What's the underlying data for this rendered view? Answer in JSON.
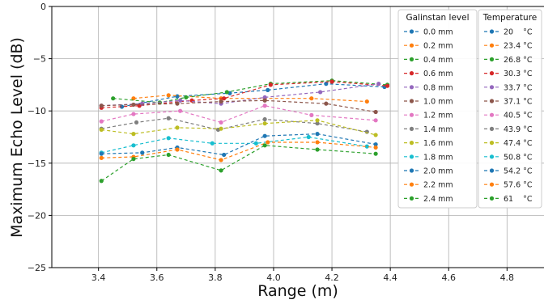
{
  "chart_data": {
    "type": "line",
    "title": "",
    "xlabel": "Range (m)",
    "ylabel": "Maximum Echo Level (dB)",
    "xlim": [
      3.24,
      4.96
    ],
    "ylim": [
      -25,
      0
    ],
    "xticks": [
      "3.4",
      "3.6",
      "3.8",
      "4.0",
      "4.2",
      "4.4",
      "4.6",
      "4.8"
    ],
    "yticks": [
      "0",
      "−5",
      "−10",
      "−15",
      "−20",
      "−25"
    ],
    "grid": true,
    "legend": {
      "placement": "top-right",
      "columns": [
        {
          "title": "Galinstan level",
          "entries": [
            "0.0 mm",
            "0.2 mm",
            "0.4 mm",
            "0.6 mm",
            "0.8 mm",
            "1.0 mm",
            "1.2 mm",
            "1.4 mm",
            "1.6 mm",
            "1.8 mm",
            "2.0 mm",
            "2.2 mm",
            "2.4 mm"
          ]
        },
        {
          "title": "Temperature",
          "entries": [
            "20    °C",
            "23.4 °C",
            "26.8 °C",
            "30.3 °C",
            "33.7 °C",
            "37.1 °C",
            "40.5 °C",
            "43.9 °C",
            "47.4 °C",
            "50.8 °C",
            "54.2 °C",
            "57.6 °C",
            "61    °C"
          ]
        }
      ]
    },
    "series": [
      {
        "color": "#1f77b4",
        "x": [
          3.48,
          3.67,
          3.85,
          3.98,
          4.18,
          4.38
        ],
        "y": [
          -9.6,
          -8.6,
          -8.3,
          -8.0,
          -7.4,
          -7.7
        ]
      },
      {
        "color": "#ff7f0e",
        "x": [
          3.52,
          3.64,
          3.82,
          3.97,
          4.13,
          4.32
        ],
        "y": [
          -8.8,
          -8.5,
          -8.8,
          -8.8,
          -8.8,
          -9.1
        ]
      },
      {
        "color": "#2ca02c",
        "x": [
          3.45,
          3.61,
          3.7,
          3.84,
          3.99,
          4.2,
          4.39
        ],
        "y": [
          -8.8,
          -9.2,
          -8.7,
          -8.2,
          -7.4,
          -7.1,
          -7.5
        ]
      },
      {
        "color": "#d62728",
        "x": [
          3.41,
          3.54,
          3.72,
          3.83,
          3.99,
          4.2,
          4.39
        ],
        "y": [
          -9.7,
          -9.5,
          -9.0,
          -8.8,
          -7.5,
          -7.2,
          -7.6
        ]
      },
      {
        "color": "#9467bd",
        "x": [
          3.41,
          3.55,
          3.68,
          3.82,
          3.97,
          4.16,
          4.36
        ],
        "y": [
          -9.5,
          -9.3,
          -9.0,
          -9.3,
          -8.7,
          -8.2,
          -7.4
        ]
      },
      {
        "color": "#8c564b",
        "x": [
          3.41,
          3.52,
          3.67,
          3.82,
          3.97,
          4.18,
          4.35
        ],
        "y": [
          -9.5,
          -9.4,
          -9.3,
          -9.1,
          -9.0,
          -9.3,
          -10.1
        ]
      },
      {
        "color": "#e377c2",
        "x": [
          3.41,
          3.52,
          3.68,
          3.82,
          3.97,
          4.13,
          4.35
        ],
        "y": [
          -11.0,
          -10.3,
          -10.0,
          -11.1,
          -9.5,
          -10.4,
          -10.9
        ]
      },
      {
        "color": "#7f7f7f",
        "x": [
          3.41,
          3.53,
          3.64,
          3.81,
          3.97,
          4.15,
          4.32
        ],
        "y": [
          -11.7,
          -11.1,
          -10.7,
          -11.8,
          -10.8,
          -11.2,
          -12.0
        ]
      },
      {
        "color": "#bcbd22",
        "x": [
          3.41,
          3.52,
          3.67,
          3.82,
          3.97,
          4.15,
          4.35
        ],
        "y": [
          -11.8,
          -12.2,
          -11.6,
          -11.7,
          -11.2,
          -10.9,
          -12.3
        ]
      },
      {
        "color": "#17becf",
        "x": [
          3.41,
          3.52,
          3.64,
          3.79,
          3.94,
          4.12,
          4.32
        ],
        "y": [
          -14.0,
          -13.3,
          -12.6,
          -13.1,
          -13.1,
          -12.5,
          -13.4
        ]
      },
      {
        "color": "#1f77b4",
        "x": [
          3.41,
          3.55,
          3.67,
          3.83,
          3.97,
          4.15,
          4.35
        ],
        "y": [
          -14.1,
          -14.0,
          -13.5,
          -14.2,
          -12.4,
          -12.2,
          -13.2
        ]
      },
      {
        "color": "#ff7f0e",
        "x": [
          3.41,
          3.52,
          3.67,
          3.82,
          3.98,
          4.15,
          4.35
        ],
        "y": [
          -14.5,
          -14.4,
          -13.7,
          -14.7,
          -13.0,
          -13.0,
          -13.5
        ]
      },
      {
        "color": "#2ca02c",
        "x": [
          3.41,
          3.52,
          3.64,
          3.82,
          3.97,
          4.15,
          4.35
        ],
        "y": [
          -16.7,
          -14.6,
          -14.2,
          -15.7,
          -13.3,
          -13.7,
          -14.1
        ]
      }
    ]
  }
}
